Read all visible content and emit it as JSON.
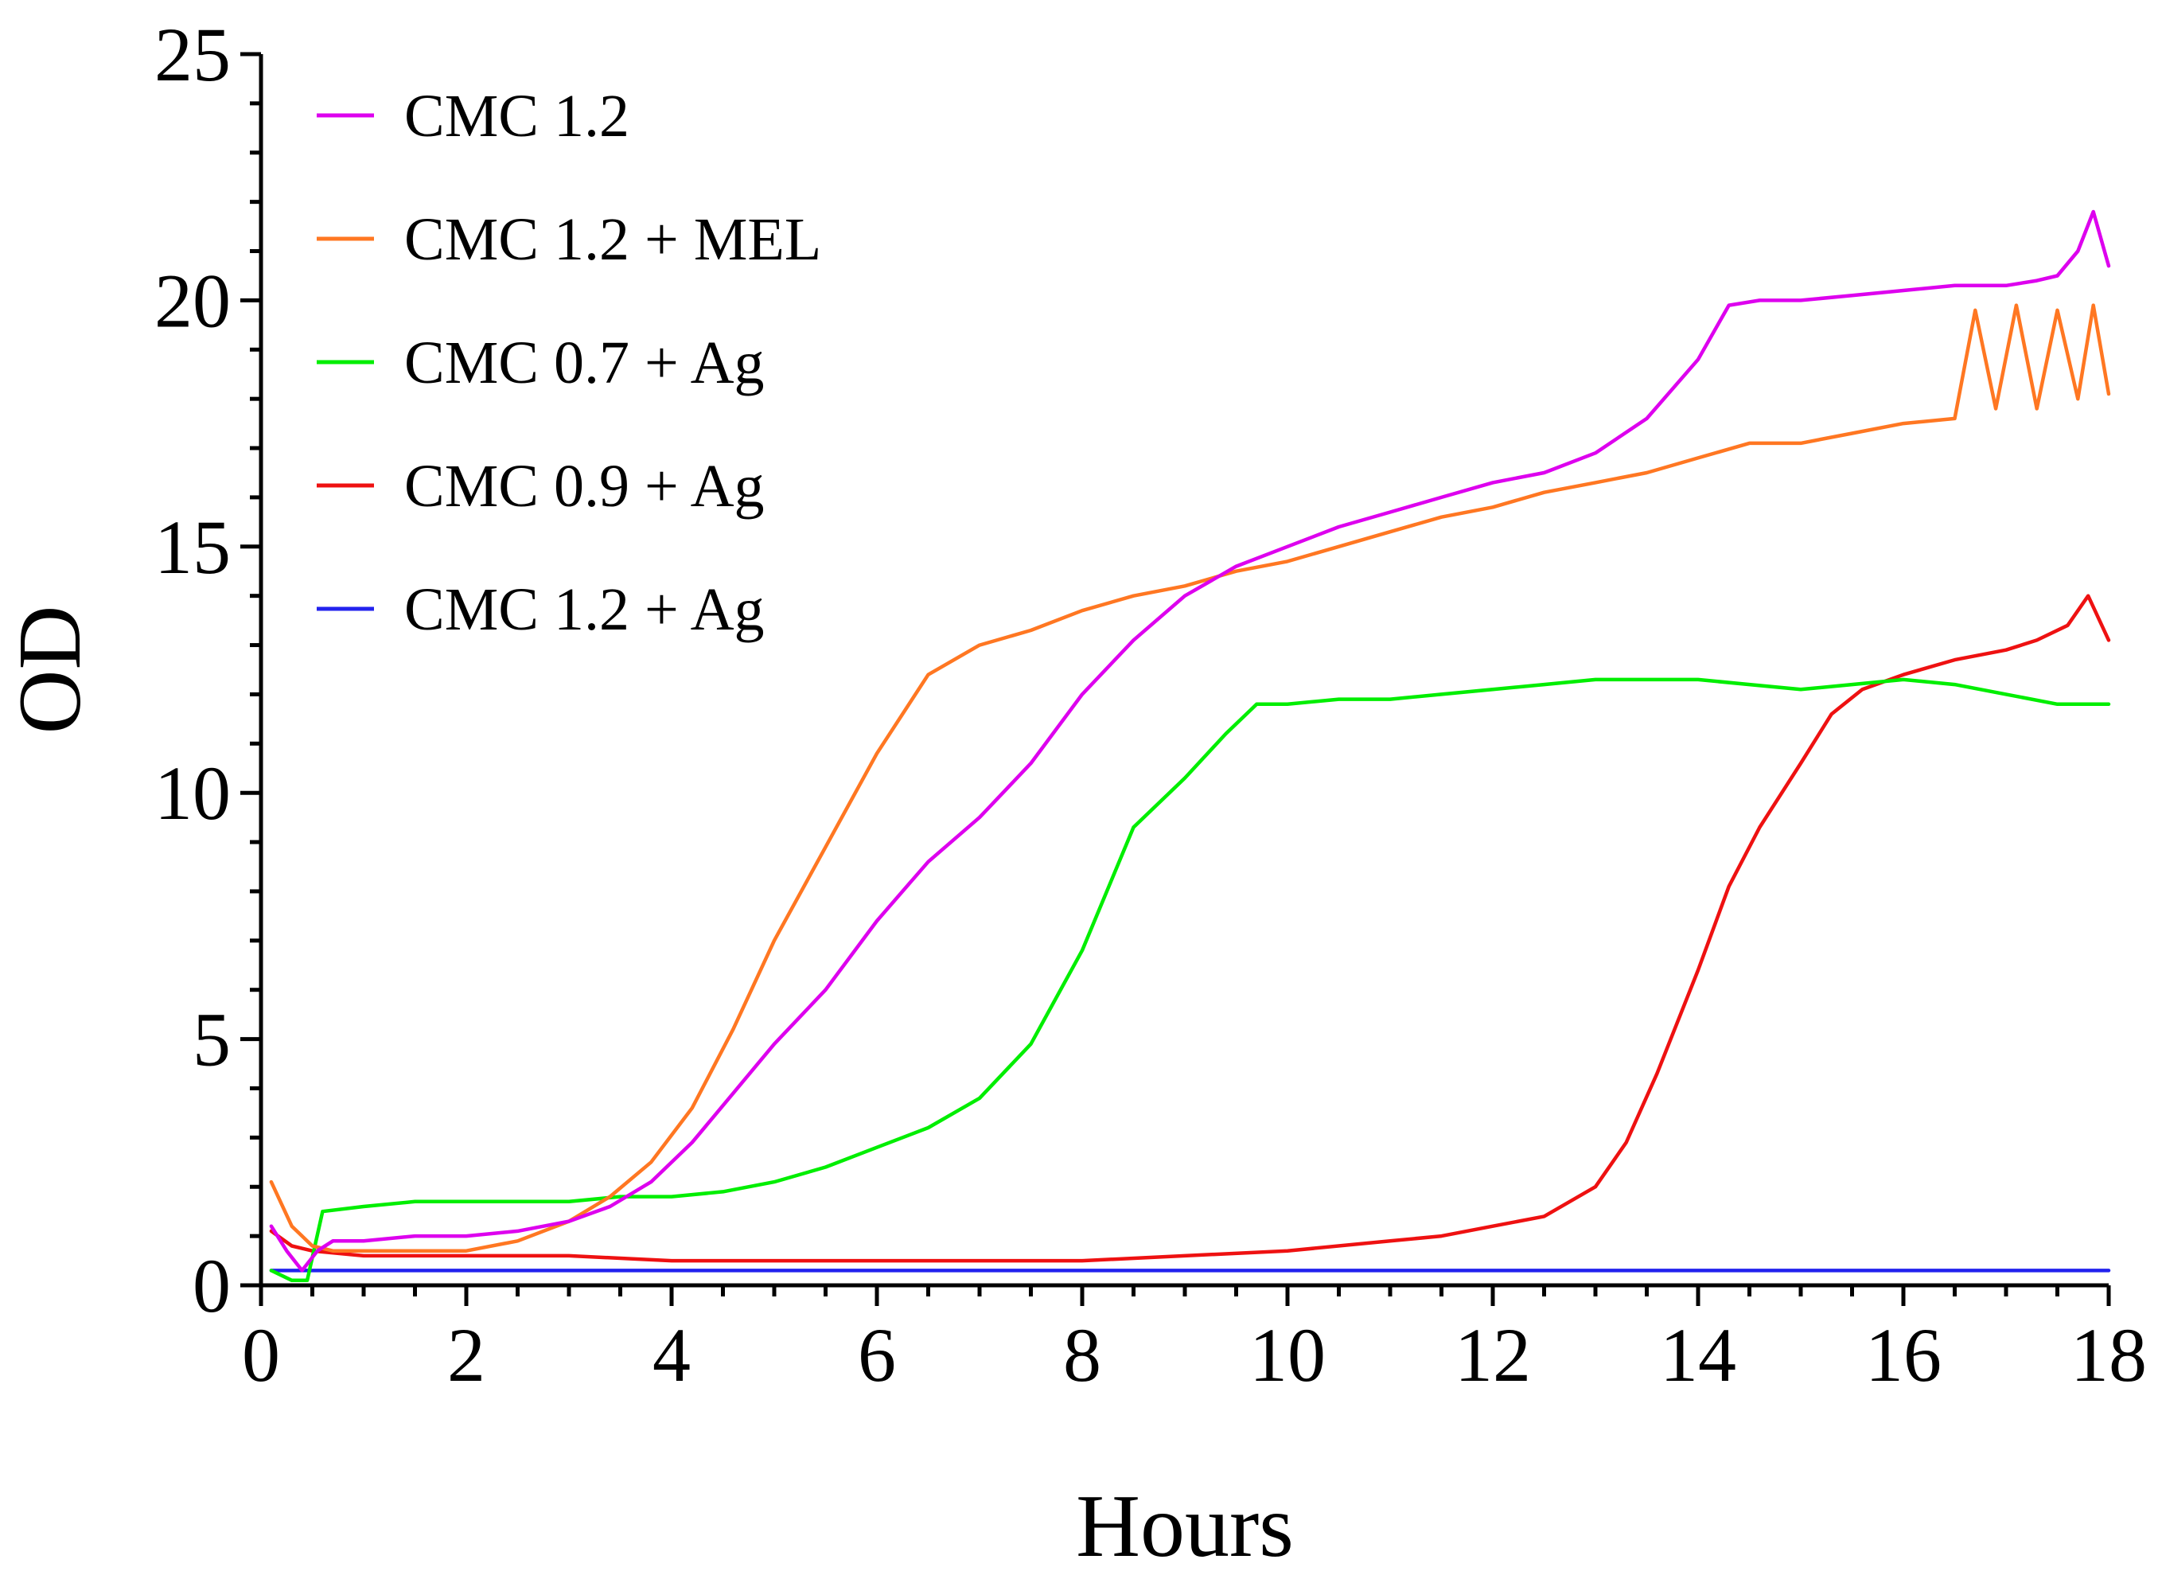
{
  "chart_data": {
    "type": "line",
    "title": "",
    "xlabel": "Hours",
    "ylabel": "OD",
    "xlim": [
      0,
      18
    ],
    "ylim": [
      0,
      25
    ],
    "x_major_ticks": [
      0,
      2,
      4,
      6,
      8,
      10,
      12,
      14,
      16,
      18
    ],
    "y_major_ticks": [
      0,
      5,
      10,
      15,
      20,
      25
    ],
    "grid": false,
    "legend_position": "top-left",
    "series": [
      {
        "name": "CMC 1.2",
        "color": "#dd00ee",
        "x": [
          0.1,
          0.25,
          0.4,
          0.55,
          0.7,
          1.0,
          1.5,
          2.0,
          2.5,
          3.0,
          3.4,
          3.8,
          4.2,
          4.6,
          5.0,
          5.5,
          6.0,
          6.5,
          7.0,
          7.5,
          8.0,
          8.5,
          9.0,
          9.5,
          10.0,
          10.5,
          11.0,
          11.5,
          12.0,
          12.5,
          13.0,
          13.5,
          14.0,
          14.3,
          14.6,
          15.0,
          15.5,
          16.0,
          16.5,
          17.0,
          17.3,
          17.5,
          17.7,
          17.85,
          18.0
        ],
        "y": [
          1.2,
          0.7,
          0.3,
          0.7,
          0.9,
          0.9,
          1.0,
          1.0,
          1.1,
          1.3,
          1.6,
          2.1,
          2.9,
          3.9,
          4.9,
          6.0,
          7.4,
          8.6,
          9.5,
          10.6,
          12.0,
          13.1,
          14.0,
          14.6,
          15.0,
          15.4,
          15.7,
          16.0,
          16.3,
          16.5,
          16.9,
          17.6,
          18.8,
          19.9,
          20.0,
          20.0,
          20.1,
          20.2,
          20.3,
          20.3,
          20.4,
          20.5,
          21.0,
          21.8,
          20.7
        ]
      },
      {
        "name": "CMC 1.2 + MEL",
        "color": "#ff7722",
        "x": [
          0.1,
          0.3,
          0.5,
          0.7,
          1.0,
          1.5,
          2.0,
          2.5,
          3.0,
          3.4,
          3.8,
          4.2,
          4.6,
          5.0,
          5.5,
          6.0,
          6.5,
          7.0,
          7.5,
          8.0,
          8.5,
          9.0,
          9.5,
          10.0,
          10.5,
          11.0,
          11.5,
          12.0,
          12.5,
          13.0,
          13.5,
          14.0,
          14.5,
          15.0,
          15.5,
          16.0,
          16.5,
          16.7,
          16.9,
          17.1,
          17.3,
          17.5,
          17.7,
          17.85,
          18.0
        ],
        "y": [
          2.1,
          1.2,
          0.8,
          0.7,
          0.7,
          0.7,
          0.7,
          0.9,
          1.3,
          1.8,
          2.5,
          3.6,
          5.2,
          7.0,
          8.9,
          10.8,
          12.4,
          13.0,
          13.3,
          13.7,
          14.0,
          14.2,
          14.5,
          14.7,
          15.0,
          15.3,
          15.6,
          15.8,
          16.1,
          16.3,
          16.5,
          16.8,
          17.1,
          17.1,
          17.3,
          17.5,
          17.6,
          19.8,
          17.8,
          19.9,
          17.8,
          19.8,
          18.0,
          19.9,
          18.1
        ]
      },
      {
        "name": "CMC 0.7 + Ag",
        "color": "#00ee00",
        "x": [
          0.1,
          0.3,
          0.45,
          0.6,
          1.0,
          1.5,
          2.0,
          2.5,
          3.0,
          3.5,
          4.0,
          4.5,
          5.0,
          5.5,
          6.0,
          6.5,
          7.0,
          7.5,
          8.0,
          8.5,
          9.0,
          9.4,
          9.7,
          10.0,
          10.5,
          11.0,
          11.5,
          12.0,
          12.5,
          13.0,
          13.5,
          14.0,
          14.5,
          15.0,
          15.5,
          16.0,
          16.5,
          17.0,
          17.5,
          18.0
        ],
        "y": [
          0.3,
          0.1,
          0.1,
          1.5,
          1.6,
          1.7,
          1.7,
          1.7,
          1.7,
          1.8,
          1.8,
          1.9,
          2.1,
          2.4,
          2.8,
          3.2,
          3.8,
          4.9,
          6.8,
          9.3,
          10.3,
          11.2,
          11.8,
          11.8,
          11.9,
          11.9,
          12.0,
          12.1,
          12.2,
          12.3,
          12.3,
          12.3,
          12.2,
          12.1,
          12.2,
          12.3,
          12.2,
          12.0,
          11.8,
          11.8
        ]
      },
      {
        "name": "CMC 0.9 + Ag",
        "color": "#ee1111",
        "x": [
          0.1,
          0.3,
          0.5,
          1.0,
          1.5,
          2.0,
          3.0,
          4.0,
          5.0,
          6.0,
          7.0,
          8.0,
          9.0,
          10.0,
          11.0,
          11.5,
          12.0,
          12.5,
          13.0,
          13.3,
          13.6,
          14.0,
          14.3,
          14.6,
          15.0,
          15.3,
          15.6,
          16.0,
          16.5,
          17.0,
          17.3,
          17.6,
          17.8,
          18.0
        ],
        "y": [
          1.1,
          0.8,
          0.7,
          0.6,
          0.6,
          0.6,
          0.6,
          0.5,
          0.5,
          0.5,
          0.5,
          0.5,
          0.6,
          0.7,
          0.9,
          1.0,
          1.2,
          1.4,
          2.0,
          2.9,
          4.3,
          6.4,
          8.1,
          9.3,
          10.6,
          11.6,
          12.1,
          12.4,
          12.7,
          12.9,
          13.1,
          13.4,
          14.0,
          13.1
        ]
      },
      {
        "name": "CMC 1.2 + Ag",
        "color": "#2222ee",
        "x": [
          0.1,
          2.0,
          4.0,
          6.0,
          8.0,
          10.0,
          12.0,
          14.0,
          16.0,
          18.0
        ],
        "y": [
          0.3,
          0.3,
          0.3,
          0.3,
          0.3,
          0.3,
          0.3,
          0.3,
          0.3,
          0.3
        ]
      }
    ]
  }
}
